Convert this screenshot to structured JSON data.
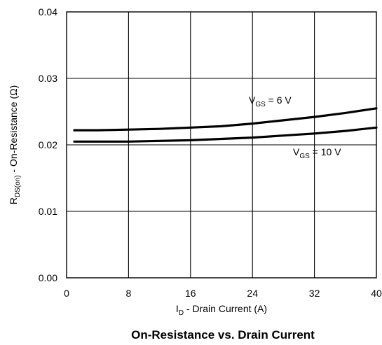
{
  "chart_data": {
    "type": "line",
    "title": "On-Resistance vs. Drain Current",
    "xlabel": {
      "main": "I",
      "sub": "D",
      "rest": " - Drain Current (A)"
    },
    "ylabel": {
      "main": "R",
      "sub": "DS(on)",
      "rest": " - On-Resistance (Ω)"
    },
    "xlim": [
      0,
      40
    ],
    "ylim": [
      0,
      0.04
    ],
    "x_ticks": [
      0,
      8,
      16,
      24,
      32,
      40
    ],
    "x_tick_labels": [
      "0",
      "8",
      "16",
      "24",
      "32",
      "40"
    ],
    "y_ticks": [
      0,
      0.01,
      0.02,
      0.03,
      0.04
    ],
    "y_tick_labels": [
      "0.00",
      "0.01",
      "0.02",
      "0.03",
      "0.04"
    ],
    "grid": true,
    "series": [
      {
        "name": "VGS = 6 V",
        "label": {
          "main": "V",
          "sub": "GS",
          "rest": " = 6 V"
        },
        "x": [
          1,
          4,
          8,
          12,
          16,
          20,
          22,
          24,
          28,
          32,
          36,
          40
        ],
        "y": [
          0.0222,
          0.0222,
          0.0223,
          0.0224,
          0.0226,
          0.0228,
          0.023,
          0.0232,
          0.0237,
          0.0242,
          0.0248,
          0.0255
        ]
      },
      {
        "name": "VGS = 10 V",
        "label": {
          "main": "V",
          "sub": "GS",
          "rest": " = 10 V"
        },
        "x": [
          1,
          4,
          8,
          12,
          16,
          20,
          24,
          28,
          32,
          36,
          40
        ],
        "y": [
          0.0205,
          0.0205,
          0.0205,
          0.0206,
          0.0207,
          0.0209,
          0.0211,
          0.0214,
          0.0217,
          0.0221,
          0.0226
        ]
      }
    ]
  }
}
